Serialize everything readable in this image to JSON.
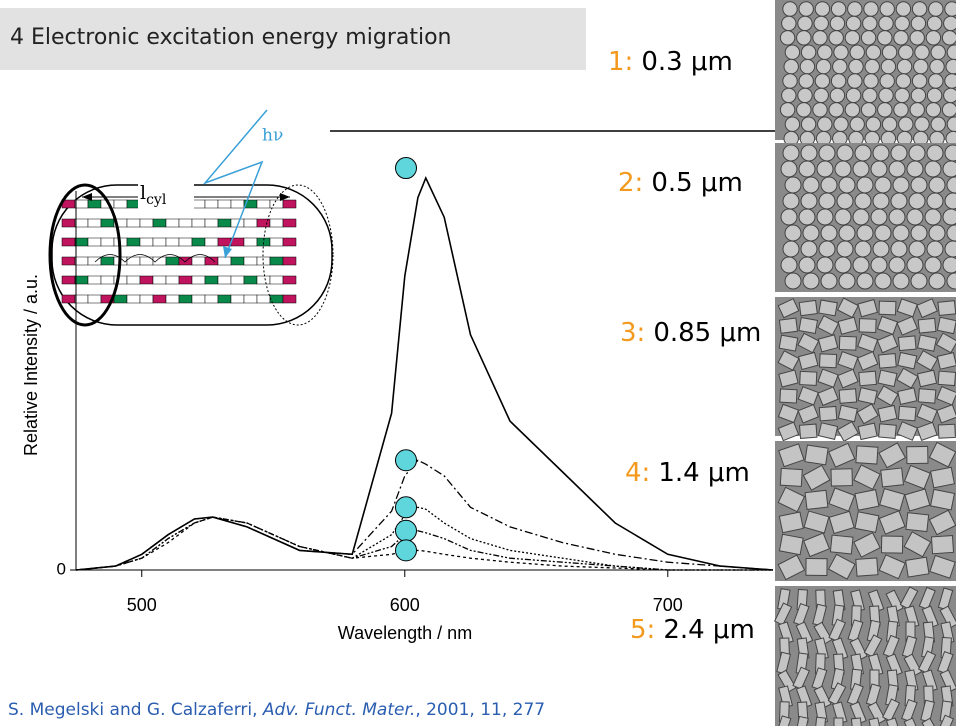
{
  "title": "4 Electronic excitation energy migration",
  "sizes": [
    {
      "number": "1:",
      "size": "0.3 μm"
    },
    {
      "number": "2:",
      "size": "0.5 μm"
    },
    {
      "number": "3:",
      "size": "0.85 μm"
    },
    {
      "number": "4:",
      "size": "1.4 μm"
    },
    {
      "number": "5:",
      "size": "2.4 μm"
    }
  ],
  "inset": {
    "photon": "hν",
    "length": "l",
    "length_sub": "cyl"
  },
  "citation": {
    "authors": "S. Megelski and G. Calzaferri, ",
    "journal": "Adv. Funct. Mater.",
    "rest": ", 2001, 11, 277"
  },
  "chart_data": {
    "type": "line",
    "x_label": "Wavelength / nm",
    "y_label": "Relative Intensity / a.u.",
    "x": [
      475,
      490,
      500,
      510,
      520,
      527,
      540,
      560,
      580,
      595,
      600,
      605,
      608,
      615,
      625,
      640,
      660,
      680,
      700,
      720,
      740
    ],
    "series": [
      {
        "color": "#000000",
        "dash": "",
        "values": [
          0,
          0.01,
          0.04,
          0.09,
          0.13,
          0.135,
          0.11,
          0.05,
          0.04,
          0.4,
          0.75,
          0.95,
          1.0,
          0.9,
          0.6,
          0.38,
          0.25,
          0.12,
          0.04,
          0.01,
          0
        ]
      },
      {
        "color": "#000000",
        "dash": "8,3,2,3",
        "values": [
          0,
          0.01,
          0.04,
          0.09,
          0.13,
          0.135,
          0.11,
          0.05,
          0.04,
          0.15,
          0.24,
          0.28,
          0.27,
          0.24,
          0.16,
          0.11,
          0.07,
          0.04,
          0.02,
          0.01,
          0
        ]
      },
      {
        "color": "#000000",
        "dash": "2,2",
        "values": [
          0,
          0.01,
          0.03,
          0.08,
          0.12,
          0.135,
          0.12,
          0.06,
          0.03,
          0.09,
          0.14,
          0.16,
          0.155,
          0.12,
          0.08,
          0.05,
          0.03,
          0.01,
          0,
          0,
          0
        ]
      },
      {
        "color": "#000000",
        "dash": "6,2,2,2,2,2",
        "values": [
          0,
          0.01,
          0.03,
          0.08,
          0.12,
          0.135,
          0.12,
          0.06,
          0.03,
          0.06,
          0.09,
          0.1,
          0.095,
          0.08,
          0.05,
          0.03,
          0.02,
          0.01,
          0,
          0,
          0
        ]
      },
      {
        "color": "#000000",
        "dash": "3,3",
        "values": [
          0,
          0.01,
          0.03,
          0.07,
          0.12,
          0.135,
          0.12,
          0.06,
          0.03,
          0.04,
          0.048,
          0.05,
          0.048,
          0.04,
          0.03,
          0.02,
          0.01,
          0.005,
          0,
          0,
          0
        ]
      }
    ],
    "xlim": [
      475,
      740
    ],
    "ylim": [
      0,
      1.12
    ],
    "xticks": [
      500,
      600,
      700
    ],
    "yticks": [
      0
    ]
  }
}
